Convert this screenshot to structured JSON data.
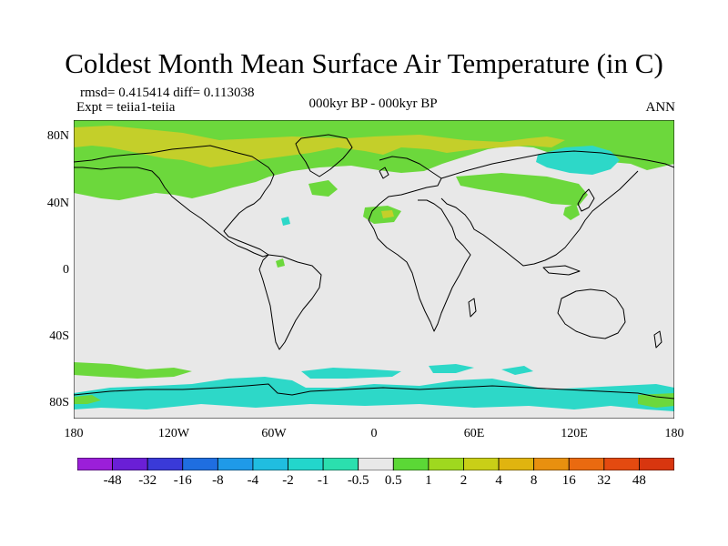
{
  "title": "Coldest Month Mean Surface Air Temperature (in C)",
  "stats": "rmsd= 0.415414 diff= 0.113038",
  "expt": "Expt = teiia1-teiia",
  "period": "000kyr BP - 000kyr BP",
  "season": "ANN",
  "y_ticks": [
    "80N",
    "40N",
    "0",
    "40S",
    "80S"
  ],
  "x_ticks": [
    "180",
    "120W",
    "60W",
    "0",
    "60E",
    "120E",
    "180"
  ],
  "colorbar": {
    "labels": [
      "-48",
      "-32",
      "-16",
      "-8",
      "-4",
      "-2",
      "-1",
      "-0.5",
      "0.5",
      "1",
      "2",
      "4",
      "8",
      "16",
      "32",
      "48"
    ],
    "colors": [
      "#9b1fd9",
      "#6a1fd6",
      "#3a3ad8",
      "#1f6ee0",
      "#1f9ae8",
      "#20bde0",
      "#23d6cc",
      "#2bdfae",
      "#e8e8e8",
      "#5bd836",
      "#9fd81f",
      "#c9cf17",
      "#e0b40f",
      "#e8900f",
      "#ea6a10",
      "#e44a10",
      "#d8360f"
    ]
  },
  "map": {
    "background": "#e8e8e8",
    "diff_color_green": "#6cd83c",
    "diff_color_yellow": "#c4cf2a",
    "diff_color_cyan": "#2dd8c8"
  }
}
